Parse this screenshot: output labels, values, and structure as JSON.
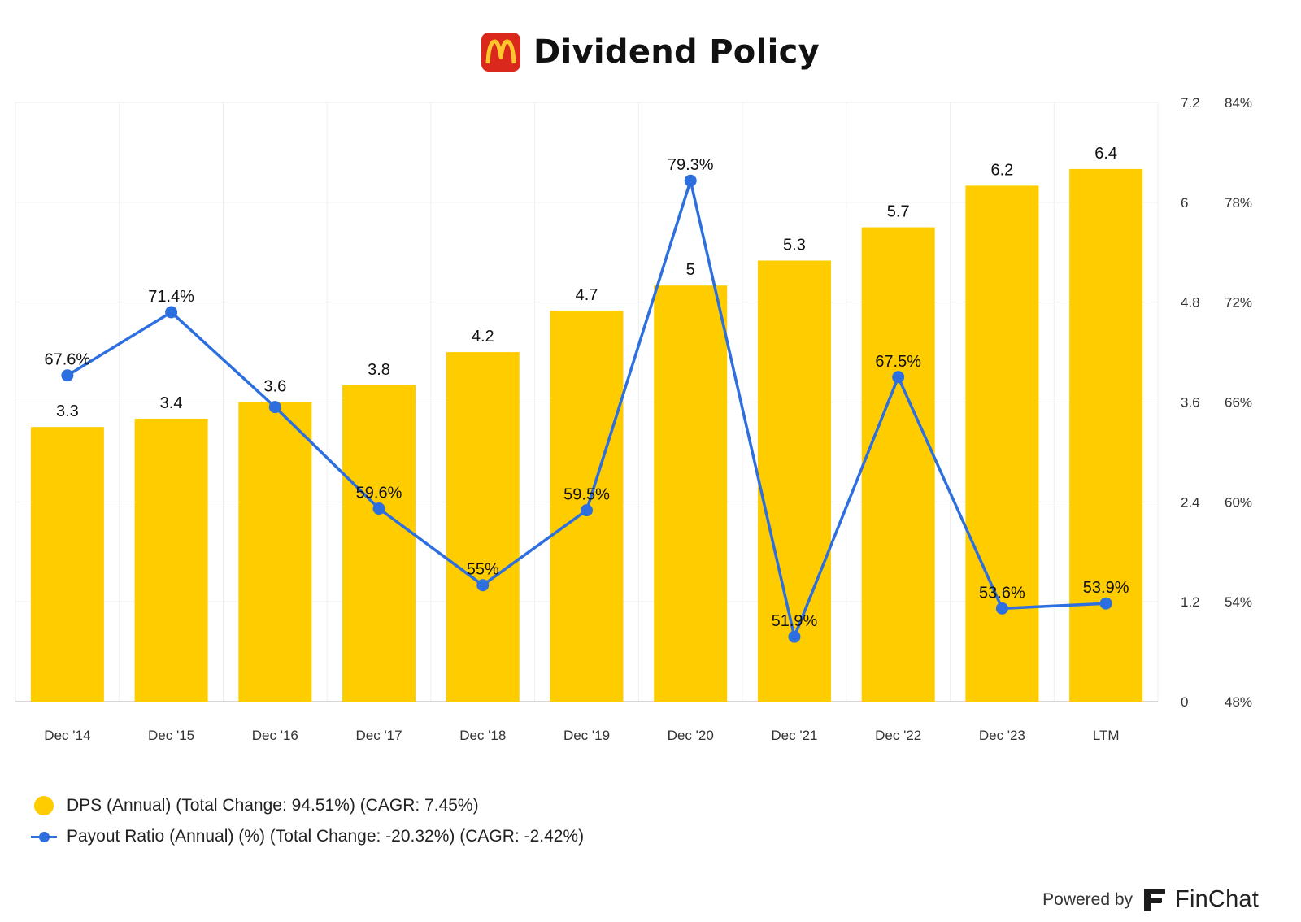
{
  "header": {
    "title": "Dividend Policy",
    "logo_icon": "mcdonalds-logo-icon",
    "logo_glyph": "M"
  },
  "colors": {
    "bar": "#FFCC00",
    "line": "#2E6FE0",
    "grid": "#EEEEEE",
    "logo_bg": "#DA291C",
    "logo_fg": "#FFC72C"
  },
  "chart_data": {
    "type": "bar",
    "categories": [
      "Dec '14",
      "Dec '15",
      "Dec '16",
      "Dec '17",
      "Dec '18",
      "Dec '19",
      "Dec '20",
      "Dec '21",
      "Dec '22",
      "Dec '23",
      "LTM"
    ],
    "series": [
      {
        "name": "DPS (Annual) (Total Change: 94.51%) (CAGR: 7.45%)",
        "type": "bar",
        "axis": "left",
        "values": [
          3.3,
          3.4,
          3.6,
          3.8,
          4.2,
          4.7,
          5,
          5.3,
          5.7,
          6.2,
          6.4
        ],
        "labels": [
          "3.3",
          "3.4",
          "3.6",
          "3.8",
          "4.2",
          "4.7",
          "5",
          "5.3",
          "5.7",
          "6.2",
          "6.4"
        ]
      },
      {
        "name": "Payout Ratio (Annual) (%) (Total Change: -20.32%) (CAGR: -2.42%)",
        "type": "line",
        "axis": "right",
        "values": [
          67.6,
          71.4,
          65.7,
          59.6,
          55,
          59.5,
          79.3,
          51.9,
          67.5,
          53.6,
          53.9
        ],
        "labels": [
          "67.6%",
          "71.4%",
          "",
          "59.6%",
          "55%",
          "59.5%",
          "79.3%",
          "51.9%",
          "67.5%",
          "53.6%",
          "53.9%"
        ]
      }
    ],
    "left_axis": {
      "ylim": [
        0,
        7.2
      ],
      "ticks": [
        0,
        1.2,
        2.4,
        3.6,
        4.8,
        6,
        7.2
      ],
      "tick_labels": [
        "0",
        "1.2",
        "2.4",
        "3.6",
        "4.8",
        "6",
        "7.2"
      ]
    },
    "right_axis": {
      "ylim": [
        48,
        84
      ],
      "ticks": [
        48,
        54,
        60,
        66,
        72,
        78,
        84
      ],
      "tick_labels": [
        "48%",
        "54%",
        "60%",
        "66%",
        "72%",
        "78%",
        "84%"
      ]
    },
    "legend_position": "bottom-left",
    "grid": true
  },
  "legend": {
    "items": [
      {
        "label": "DPS (Annual) (Total Change: 94.51%) (CAGR: 7.45%)",
        "icon": "yellow-dot-icon"
      },
      {
        "label": "Payout Ratio (Annual) (%) (Total Change: -20.32%) (CAGR: -2.42%)",
        "icon": "blue-line-icon"
      }
    ]
  },
  "footer": {
    "powered_by": "Powered by",
    "brand": "FinChat",
    "brand_icon": "finchat-logo-icon"
  }
}
